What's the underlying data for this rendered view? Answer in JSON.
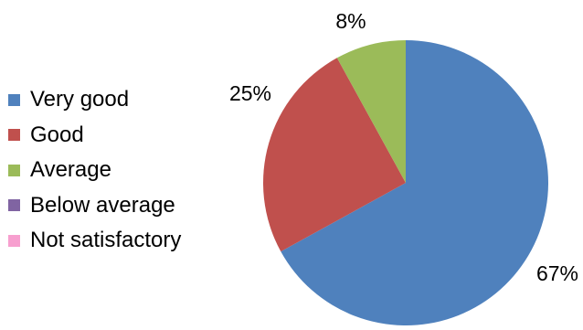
{
  "chart_data": {
    "type": "pie",
    "categories": [
      "Very good",
      "Good",
      "Average",
      "Below average",
      "Not satisfactory"
    ],
    "values": [
      67,
      25,
      8,
      0,
      0
    ],
    "data_labels": [
      "67%",
      "25%",
      "8%",
      "",
      ""
    ],
    "colors": [
      "#4f81bd",
      "#c0504d",
      "#9bbb59",
      "#8064a2",
      "#f79fcf"
    ],
    "legend_position": "left",
    "start_angle": "12 o'clock",
    "direction": "clockwise"
  }
}
